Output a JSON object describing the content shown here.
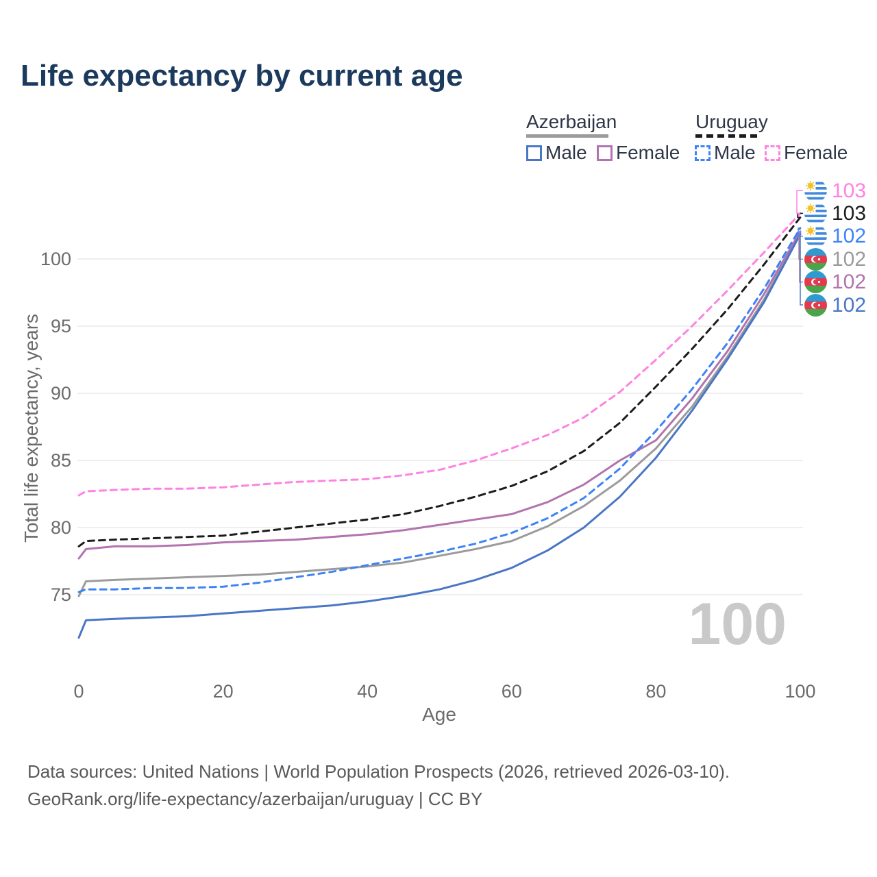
{
  "header": {
    "title": "Life expectancy by current age"
  },
  "legend": {
    "groups": [
      {
        "label": "Azerbaijan",
        "line_style": "solid",
        "line_color": "#9b9b9b",
        "items": [
          {
            "label": "Male",
            "color": "#4a76c6"
          },
          {
            "label": "Female",
            "color": "#b273ae"
          }
        ]
      },
      {
        "label": "Uruguay",
        "line_style": "dashed",
        "line_color": "#1c1c1c",
        "items": [
          {
            "label": "Male",
            "color": "#3d83f6"
          },
          {
            "label": "Female",
            "color": "#ff82e1"
          }
        ]
      }
    ]
  },
  "chart_data": {
    "type": "line",
    "title": "Life expectancy by current age",
    "xlabel": "Age",
    "ylabel": "Total life expectancy, years",
    "xlim": [
      0,
      100
    ],
    "ylim": [
      71,
      104
    ],
    "xticks": [
      0,
      20,
      40,
      60,
      80,
      100
    ],
    "yticks": [
      75,
      80,
      85,
      90,
      95,
      100
    ],
    "grid": "horizontal-only",
    "legend_position": "top-right",
    "x": [
      0,
      1,
      5,
      10,
      15,
      20,
      25,
      30,
      35,
      40,
      45,
      50,
      55,
      60,
      65,
      70,
      75,
      80,
      85,
      90,
      95,
      100
    ],
    "series": [
      {
        "name": "Azerbaijan Total",
        "country": "Azerbaijan",
        "sex": "total",
        "color": "#9b9b9b",
        "dashed": false,
        "flag": "az",
        "end_label": "102",
        "end_row": 3,
        "values": [
          74.9,
          76.0,
          76.1,
          76.2,
          76.3,
          76.4,
          76.5,
          76.7,
          76.9,
          77.1,
          77.4,
          77.9,
          78.4,
          79.0,
          80.1,
          81.6,
          83.5,
          85.9,
          89.0,
          92.8,
          97.0,
          101.95
        ]
      },
      {
        "name": "Azerbaijan Female",
        "country": "Azerbaijan",
        "sex": "female",
        "color": "#b273ae",
        "dashed": false,
        "flag": "az",
        "end_label": "102",
        "end_row": 4,
        "values": [
          77.7,
          78.4,
          78.6,
          78.6,
          78.7,
          78.9,
          79.0,
          79.1,
          79.3,
          79.5,
          79.8,
          80.2,
          80.6,
          81.0,
          81.9,
          83.2,
          85.0,
          86.5,
          89.6,
          93.2,
          97.4,
          102.05
        ]
      },
      {
        "name": "Azerbaijan Male",
        "country": "Azerbaijan",
        "sex": "male",
        "color": "#4a76c6",
        "dashed": false,
        "flag": "az",
        "end_label": "102",
        "end_row": 5,
        "values": [
          71.8,
          73.1,
          73.2,
          73.3,
          73.4,
          73.6,
          73.8,
          74.0,
          74.2,
          74.5,
          74.9,
          75.4,
          76.1,
          77.0,
          78.3,
          80.0,
          82.3,
          85.2,
          88.7,
          92.6,
          96.8,
          101.85
        ]
      },
      {
        "name": "Uruguay Total",
        "country": "Uruguay",
        "sex": "total",
        "color": "#1c1c1c",
        "dashed": true,
        "flag": "uy",
        "end_label": "103",
        "end_row": 1,
        "values": [
          78.6,
          79.0,
          79.1,
          79.2,
          79.3,
          79.4,
          79.7,
          80.0,
          80.3,
          80.6,
          81.0,
          81.6,
          82.3,
          83.1,
          84.2,
          85.7,
          87.8,
          90.5,
          93.3,
          96.3,
          99.6,
          103.1
        ]
      },
      {
        "name": "Uruguay Female",
        "country": "Uruguay",
        "sex": "female",
        "color": "#ff82e1",
        "dashed": true,
        "flag": "uy",
        "end_label": "103",
        "end_row": 0,
        "values": [
          82.4,
          82.7,
          82.8,
          82.9,
          82.9,
          83.0,
          83.2,
          83.4,
          83.5,
          83.6,
          83.9,
          84.3,
          85.0,
          85.9,
          86.9,
          88.2,
          90.1,
          92.5,
          95.0,
          97.7,
          100.5,
          103.4
        ]
      },
      {
        "name": "Uruguay Male",
        "country": "Uruguay",
        "sex": "male",
        "color": "#3d83f6",
        "dashed": true,
        "flag": "uy",
        "end_label": "102",
        "end_row": 2,
        "values": [
          75.2,
          75.4,
          75.4,
          75.5,
          75.5,
          75.6,
          75.9,
          76.3,
          76.7,
          77.2,
          77.7,
          78.2,
          78.8,
          79.6,
          80.7,
          82.2,
          84.4,
          87.2,
          90.3,
          93.8,
          97.8,
          102.3
        ]
      }
    ]
  },
  "watermark": "100",
  "footer": {
    "line1": "Data sources: United Nations | World Population Prospects (2026, retrieved 2026-03-10).",
    "line2": "GeoRank.org/life-expectancy/azerbaijan/uruguay | CC BY"
  }
}
